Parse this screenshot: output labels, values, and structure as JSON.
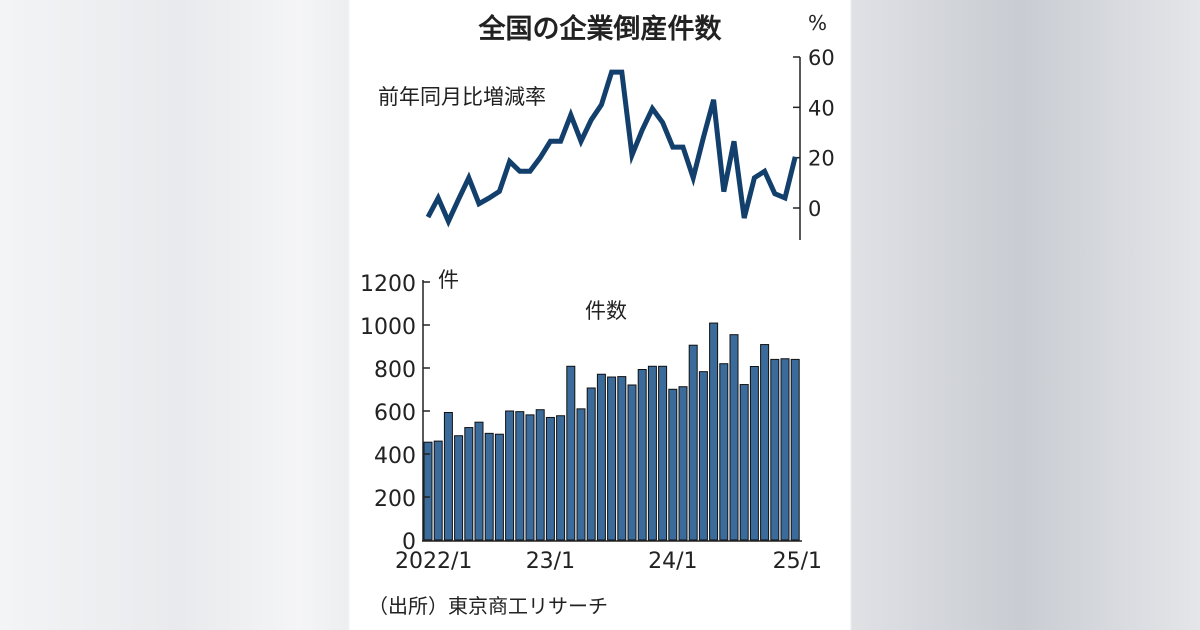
{
  "chart_data": [
    {
      "type": "line",
      "title": "全国の企業倒産件数",
      "label": "前年同月比増減率",
      "unit": "%",
      "ylim": [
        -12,
        60
      ],
      "yticks": [
        60,
        40,
        20,
        0
      ],
      "color": "#123f6c",
      "values": [
        -3.6,
        4,
        -5.3,
        3.5,
        12,
        1.7,
        4,
        6.6,
        18.5,
        14.6,
        14.6,
        20,
        26.5,
        26.5,
        37,
        26.5,
        35,
        41,
        54,
        54,
        21,
        31,
        39.5,
        34,
        24.2,
        24.2,
        12,
        28,
        43,
        6.5,
        26.5,
        -4,
        12,
        14.6,
        5.7,
        4,
        20.3
      ]
    },
    {
      "type": "bar",
      "label": "件数",
      "unit": "件",
      "ylim": [
        0,
        1200
      ],
      "yticks": [
        1200,
        1000,
        800,
        600,
        400,
        200,
        0
      ],
      "color": "#3a6b9a",
      "x_tick_labels": [
        "2022/1",
        "23/1",
        "24/1",
        "25/1"
      ],
      "x_tick_index": [
        0,
        12,
        24,
        36
      ],
      "values": [
        455,
        460,
        593,
        485,
        523,
        548,
        496,
        492,
        600,
        597,
        582,
        606,
        570,
        578,
        808,
        610,
        707,
        771,
        758,
        760,
        721,
        793,
        808,
        808,
        701,
        713,
        906,
        783,
        1009,
        820,
        955,
        723,
        807,
        909,
        840,
        843,
        840
      ]
    }
  ],
  "source": "（出所）東京商工リサーチ"
}
